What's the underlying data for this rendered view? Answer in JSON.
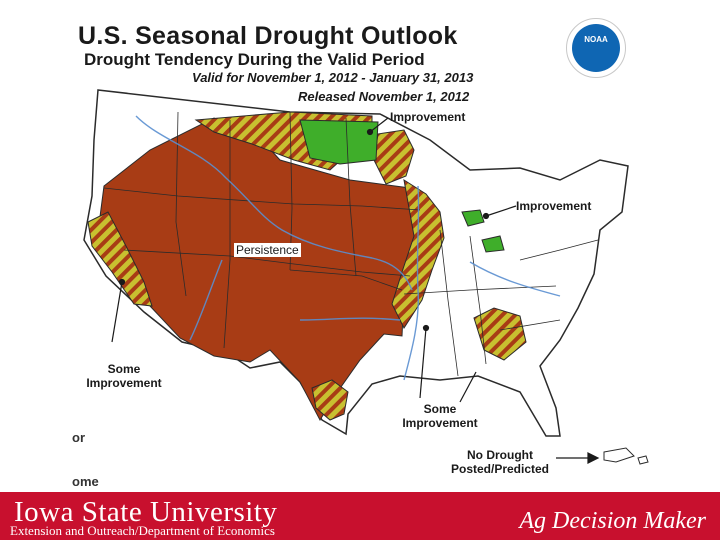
{
  "header": {
    "title": "U.S. Seasonal Drought Outlook",
    "subtitle": "Drought Tendency During the Valid Period",
    "valid_period": "Valid for November 1, 2012 - January 31, 2013",
    "released": "Released November 1, 2012",
    "logo_text": "NOAA"
  },
  "map": {
    "labels": {
      "improvement_north": "Improvement",
      "improvement_east": "Improvement",
      "persistence": "Persistence",
      "some_improvement_west_1": "Some",
      "some_improvement_west_2": "Improvement",
      "some_improvement_south_1": "Some",
      "some_improvement_south_2": "Improvement",
      "no_drought_1": "No Drought",
      "no_drought_2": "Posted/Predicted"
    },
    "legend_fragments": {
      "frag1": "or",
      "frag2": "ome"
    },
    "colors": {
      "persistence": "#a83c15",
      "improvement": "#3fae2a",
      "some_improvement_stripe": "#c8c030",
      "land": "#ffffff",
      "water": "#b0cde8",
      "boundary": "#2b2b2b",
      "river": "#5a8fd0"
    }
  },
  "footer": {
    "university": "Iowa State University",
    "extension": "Extension and Outreach/Department of Economics",
    "brand": "Ag Decision Maker",
    "color": "#c8102e"
  }
}
